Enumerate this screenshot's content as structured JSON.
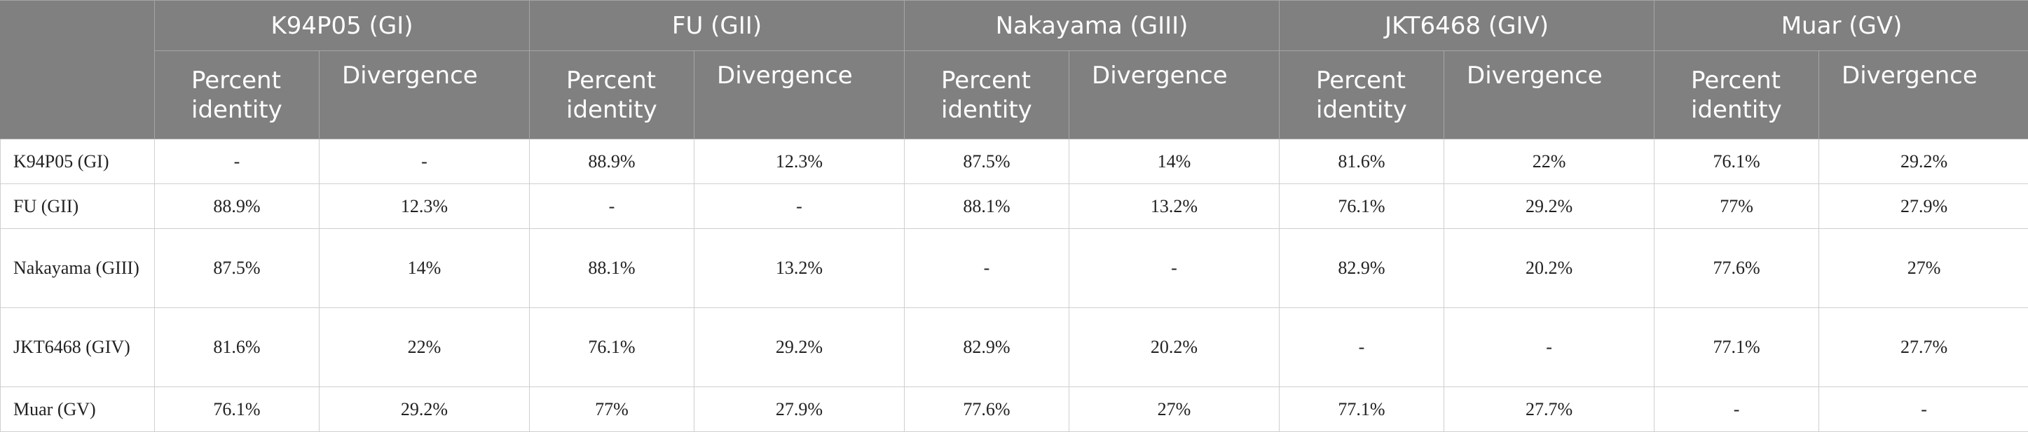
{
  "table": {
    "groups": [
      "K94P05 (GI)",
      "FU (GII)",
      "Nakayama (GIII)",
      "JKT6468 (GIV)",
      "Muar (GV)"
    ],
    "sub_headers": {
      "percent": "Percent identity",
      "divergence": "Divergence"
    },
    "rows": [
      {
        "label": "K94P05 (GI)",
        "cells": [
          "-",
          "-",
          "88.9%",
          "12.3%",
          "87.5%",
          "14%",
          "81.6%",
          "22%",
          "76.1%",
          "29.2%"
        ]
      },
      {
        "label": "FU (GII)",
        "cells": [
          "88.9%",
          "12.3%",
          "-",
          "-",
          "88.1%",
          "13.2%",
          "76.1%",
          "29.2%",
          "77%",
          "27.9%"
        ]
      },
      {
        "label": "Nakayama (GIII)",
        "cells": [
          "87.5%",
          "14%",
          "88.1%",
          "13.2%",
          "-",
          "-",
          "82.9%",
          "20.2%",
          "77.6%",
          "27%"
        ]
      },
      {
        "label": "JKT6468 (GIV)",
        "cells": [
          "81.6%",
          "22%",
          "76.1%",
          "29.2%",
          "82.9%",
          "20.2%",
          "-",
          "-",
          "77.1%",
          "27.7%"
        ]
      },
      {
        "label": "Muar (GV)",
        "cells": [
          "76.1%",
          "29.2%",
          "77%",
          "27.9%",
          "77.6%",
          "27%",
          "77.1%",
          "27.7%",
          "-",
          "-"
        ]
      }
    ]
  }
}
